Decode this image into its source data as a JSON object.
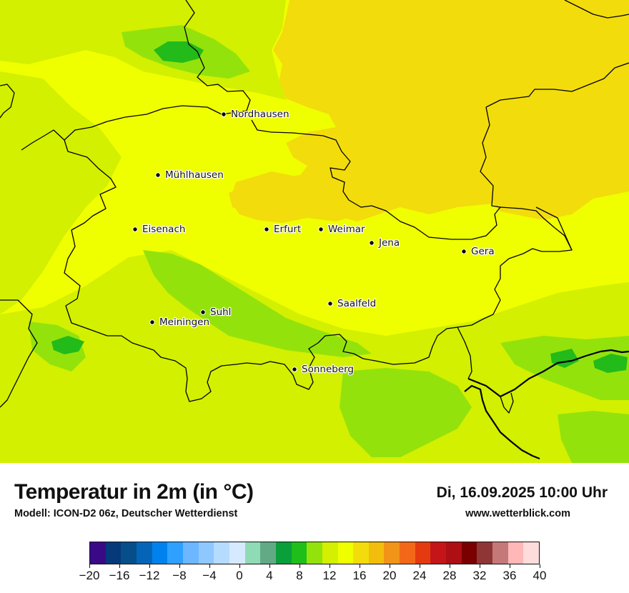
{
  "map": {
    "cities": [
      {
        "name": "Nordhausen"
      },
      {
        "name": "Mühlhausen"
      },
      {
        "name": "Eisenach"
      },
      {
        "name": "Erfurt"
      },
      {
        "name": "Weimar"
      },
      {
        "name": "Jena"
      },
      {
        "name": "Gera"
      },
      {
        "name": "Suhl"
      },
      {
        "name": "Meiningen"
      },
      {
        "name": "Saalfeld"
      },
      {
        "name": "Sonneberg"
      }
    ],
    "colors": {
      "base": "#f0ff00",
      "warm": "#f2dc0c",
      "lime": "#d2f000",
      "green": "#94e20c",
      "dark_green": "#22bb1a",
      "border": "#000000"
    }
  },
  "header": {
    "title": "Temperatur in 2m (in °C)",
    "subtitle": "Modell: ICON-D2 06z, Deutscher Wetterdienst",
    "datetime": "Di, 16.09.2025 10:00 Uhr",
    "website": "www.wetterblick.com"
  },
  "colorbar": {
    "colors": [
      "#3a0a86",
      "#05397a",
      "#054e8a",
      "#0465b8",
      "#0082ee",
      "#2ea0ff",
      "#6cb7ff",
      "#8ec8ff",
      "#b5dbff",
      "#d5e9ff",
      "#8fdbb6",
      "#62aa86",
      "#0a9f3a",
      "#20be18",
      "#94e20c",
      "#d2f000",
      "#f0ff00",
      "#f2dc0c",
      "#f3bd0c",
      "#f29418",
      "#f26818",
      "#e53a10",
      "#c41618",
      "#ad0f14",
      "#7a0000",
      "#8e3636",
      "#c57878",
      "#ffb7b7",
      "#ffdcdc"
    ],
    "tick_labels": [
      "−20",
      "−16",
      "−12",
      "−8",
      "−4",
      "0",
      "4",
      "8",
      "12",
      "16",
      "20",
      "24",
      "28",
      "32",
      "36",
      "40"
    ]
  }
}
